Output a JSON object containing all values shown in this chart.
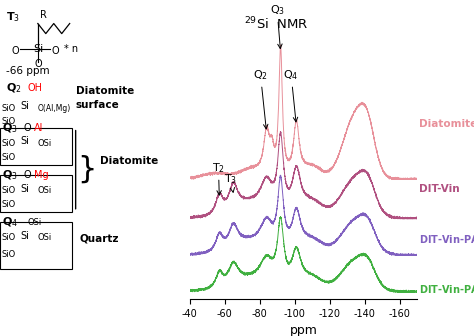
{
  "title": "$^{29}$Si  NMR",
  "xlabel": "ppm",
  "xlim": [
    -40,
    -170
  ],
  "xticks": [
    -40,
    -60,
    -80,
    -100,
    -120,
    -140,
    -160
  ],
  "spectra_colors": {
    "Diatomite": "#e8909a",
    "DIT-Vin": "#b05080",
    "DIT-Vin-PAcov": "#8060c0",
    "DIT-Vin-PAin": "#40b040"
  },
  "offsets": {
    "Diatomite": 0.8,
    "DIT-Vin": 0.52,
    "DIT-Vin-PAcov": 0.26,
    "DIT-Vin-PAin": 0.0
  },
  "background_color": "#ffffff"
}
